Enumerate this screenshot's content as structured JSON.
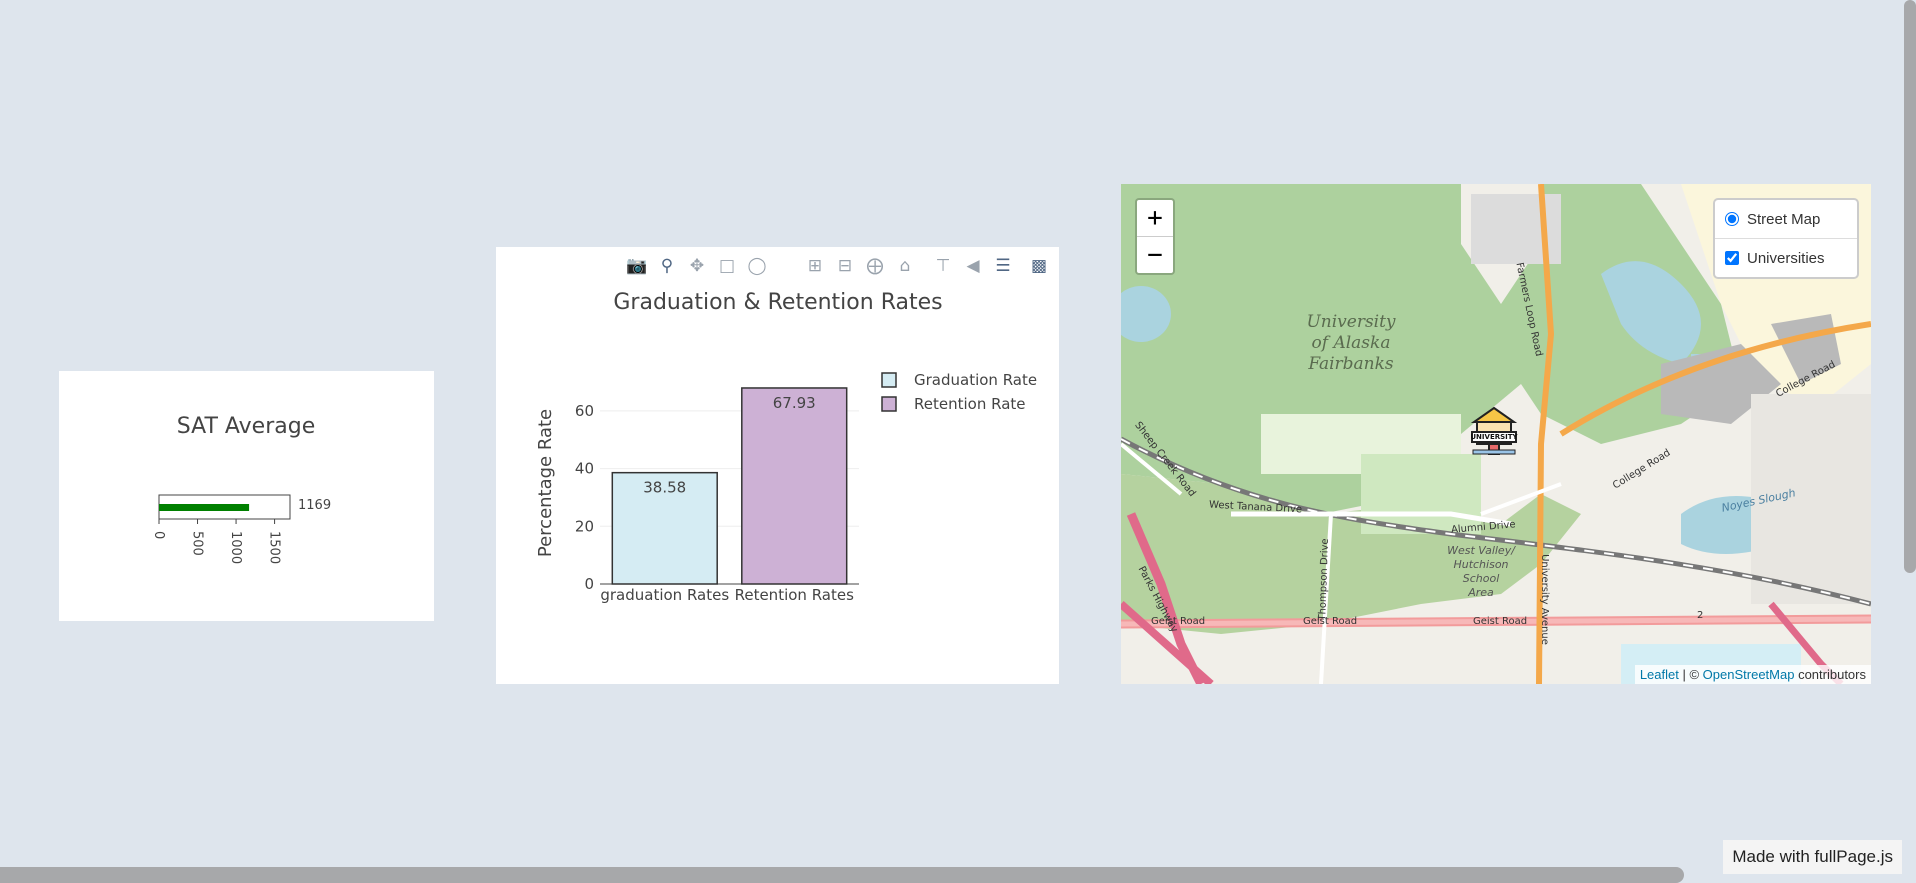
{
  "sat": {
    "title": "SAT Average",
    "value": 1169,
    "value_label": "1169",
    "axis_range": [
      0,
      1700
    ],
    "ticks": [
      "0",
      "500",
      "1000",
      "1500"
    ],
    "bar_color": "#008000"
  },
  "chart_data": {
    "type": "bar",
    "title": "Graduation & Retention Rates",
    "ylabel": "Percentage Rate",
    "xlabel": "",
    "categories": [
      "graduation Rates",
      "Retention Rates"
    ],
    "values": [
      38.58,
      67.93
    ],
    "data_labels": [
      "38.58",
      "67.93"
    ],
    "colors": [
      "#d5ecf3",
      "#cdb1d5"
    ],
    "legend": [
      "Graduation Rate",
      "Retention Rate"
    ],
    "legend_placement": "top-right",
    "ylim": [
      0,
      70
    ],
    "yticks": [
      "0",
      "20",
      "40",
      "60"
    ],
    "grid": true
  },
  "modebar": {
    "buttons": [
      "camera-icon",
      "zoom-icon",
      "pan-icon",
      "box-select-icon",
      "lasso-icon",
      "zoom-in-icon",
      "zoom-out-icon",
      "autoscale-icon",
      "reset-axes-icon",
      "spike-lines-icon",
      "hover-closest-icon",
      "hover-compare-icon",
      "plotly-logo-icon"
    ]
  },
  "map": {
    "zoom_in": "+",
    "zoom_out": "−",
    "layers": {
      "base": "Street Map",
      "overlay": "Universities"
    },
    "labels": {
      "campus": [
        "University",
        "of Alaska",
        "Fairbanks"
      ],
      "roads": [
        "West Tanana Drive",
        "Alumni Drive",
        "Geist Road",
        "Geist Road",
        "Geist Road",
        "College Road",
        "College Road",
        "Farmers Loop Road",
        "University Avenue",
        "Thompson Drive",
        "Sheep Creek Road",
        "Parks Highway",
        "Noyes Slough"
      ],
      "area": [
        "West Valley/",
        "Hutchison",
        "School",
        "Area"
      ],
      "shield": "2"
    },
    "marker_label": "UNIVERSITY",
    "attribution": {
      "leaflet": "Leaflet",
      "sep": " | © ",
      "osm": "OpenStreetMap",
      "tail": " contributors"
    }
  },
  "footer": {
    "badge": "Made with fullPage.js"
  },
  "colors": {
    "background": "#dee5ed",
    "park": "#add19e",
    "road": "#f4a84a"
  }
}
